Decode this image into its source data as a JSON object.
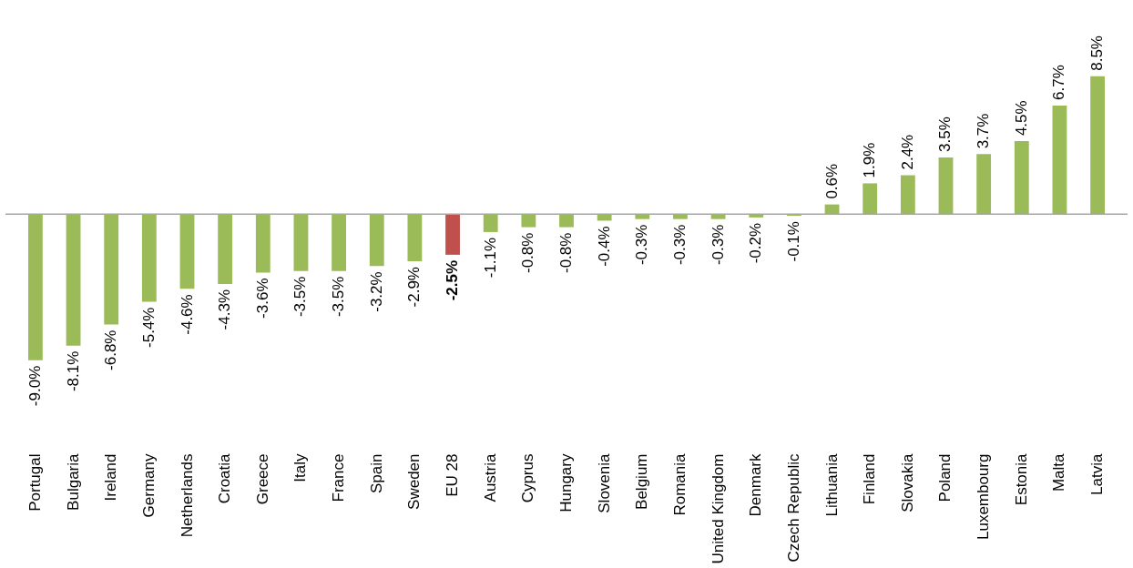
{
  "chart_data": {
    "type": "bar",
    "categories": [
      "Portugal",
      "Bulgaria",
      "Ireland",
      "Germany",
      "Netherlands",
      "Croatia",
      "Greece",
      "Italy",
      "France",
      "Spain",
      "Sweden",
      "EU 28",
      "Austria",
      "Cyprus",
      "Hungary",
      "Slovenia",
      "Belgium",
      "Romania",
      "United Kingdom",
      "Denmark",
      "Czech Republic",
      "Lithuania",
      "Finland",
      "Slovakia",
      "Poland",
      "Luxembourg",
      "Estonia",
      "Malta",
      "Latvia"
    ],
    "values": [
      -9.0,
      -8.1,
      -6.8,
      -5.4,
      -4.6,
      -4.3,
      -3.6,
      -3.5,
      -3.5,
      -3.2,
      -2.9,
      -2.5,
      -1.1,
      -0.8,
      -0.8,
      -0.4,
      -0.3,
      -0.3,
      -0.3,
      -0.2,
      -0.1,
      0.6,
      1.9,
      2.4,
      3.5,
      3.7,
      4.5,
      6.7,
      8.5
    ],
    "value_labels": [
      "-9.0%",
      "-8.1%",
      "-6.8%",
      "-5.4%",
      "-4.6%",
      "-4.3%",
      "-3.6%",
      "-3.5%",
      "-3.5%",
      "-3.2%",
      "-2.9%",
      "-2.5%",
      "-1.1%",
      "-0.8%",
      "-0.8%",
      "-0.4%",
      "-0.3%",
      "-0.3%",
      "-0.3%",
      "-0.2%",
      "-0.1%",
      "0.6%",
      "1.9%",
      "2.4%",
      "3.5%",
      "3.7%",
      "4.5%",
      "6.7%",
      "8.5%"
    ],
    "colors": [
      "#9bbb59",
      "#9bbb59",
      "#9bbb59",
      "#9bbb59",
      "#9bbb59",
      "#9bbb59",
      "#9bbb59",
      "#9bbb59",
      "#9bbb59",
      "#9bbb59",
      "#9bbb59",
      "#c0504d",
      "#9bbb59",
      "#9bbb59",
      "#9bbb59",
      "#9bbb59",
      "#9bbb59",
      "#9bbb59",
      "#9bbb59",
      "#9bbb59",
      "#9bbb59",
      "#9bbb59",
      "#9bbb59",
      "#9bbb59",
      "#9bbb59",
      "#9bbb59",
      "#9bbb59",
      "#9bbb59",
      "#9bbb59"
    ],
    "grid": false
  }
}
